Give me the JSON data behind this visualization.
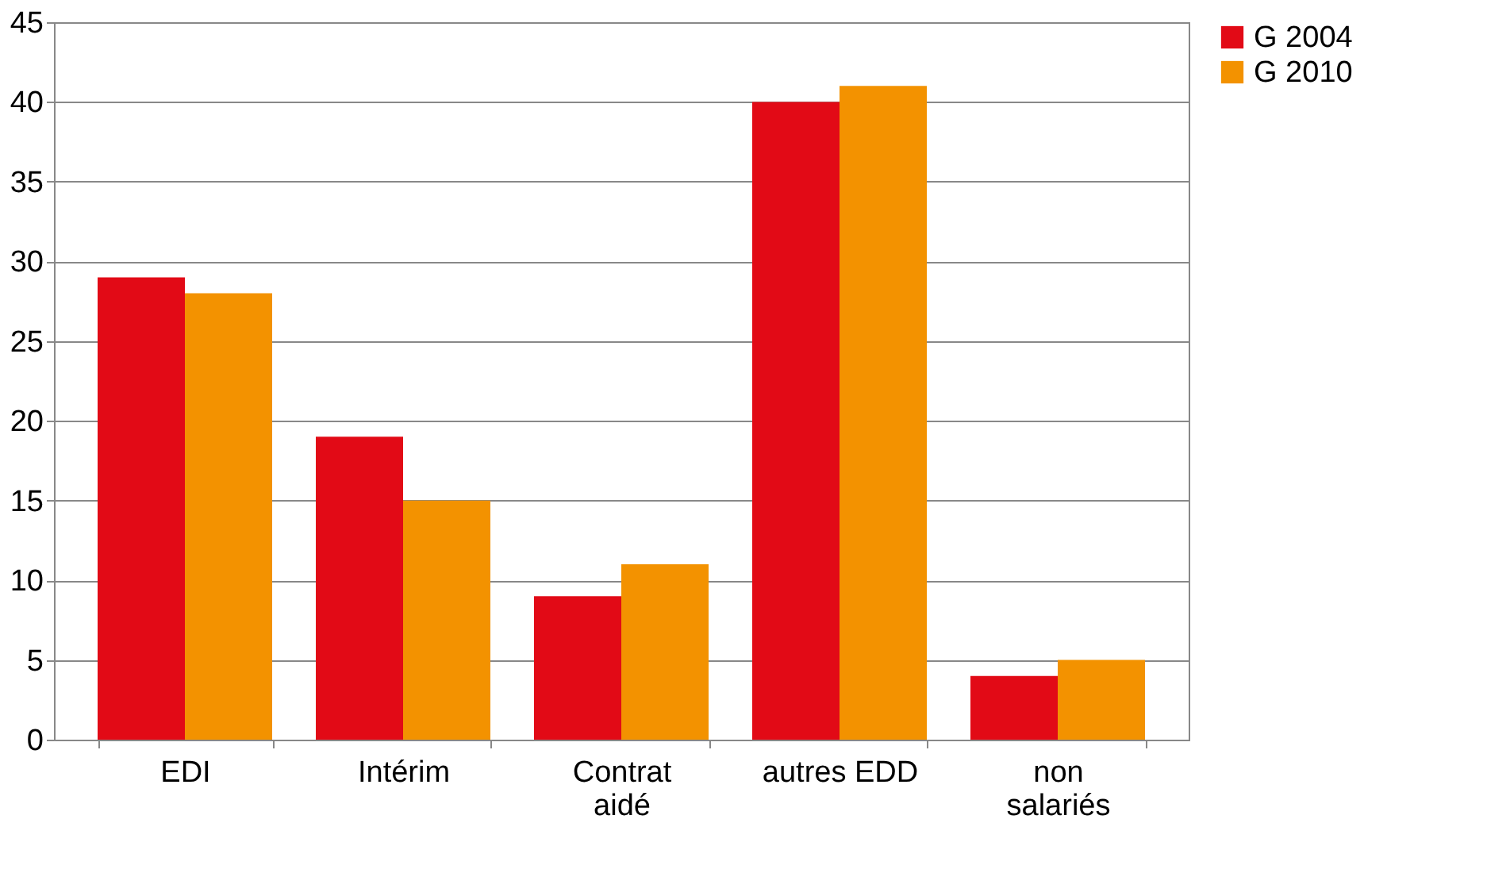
{
  "chart_data": {
    "type": "bar",
    "categories": [
      "EDI",
      "Intérim",
      "Contrat aidé",
      "autres EDD",
      "non salariés"
    ],
    "series": [
      {
        "name": "G 2004",
        "color": "#e20a16",
        "values": [
          29,
          19,
          9,
          40,
          4
        ]
      },
      {
        "name": "G 2010",
        "color": "#f39200",
        "values": [
          28,
          15,
          11,
          41,
          5
        ]
      }
    ],
    "ylim": [
      0,
      45
    ],
    "yticks": [
      0,
      5,
      10,
      15,
      20,
      25,
      30,
      35,
      40,
      45
    ],
    "grid": "y",
    "legend": "right"
  }
}
